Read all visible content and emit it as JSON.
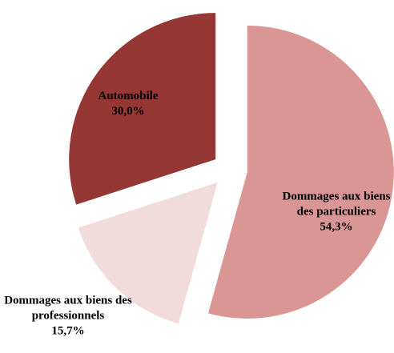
{
  "chart_data": {
    "type": "pie",
    "categories": [
      "Dommages aux biens des particuliers",
      "Dommages aux biens des professionnels",
      "Automobile"
    ],
    "values": [
      54.3,
      15.7,
      30.0
    ],
    "value_labels": [
      "54,3%",
      "15,7%",
      "30,0%"
    ],
    "colors": [
      "#d99694",
      "#f2dcdb",
      "#953735"
    ],
    "exploded": true
  }
}
